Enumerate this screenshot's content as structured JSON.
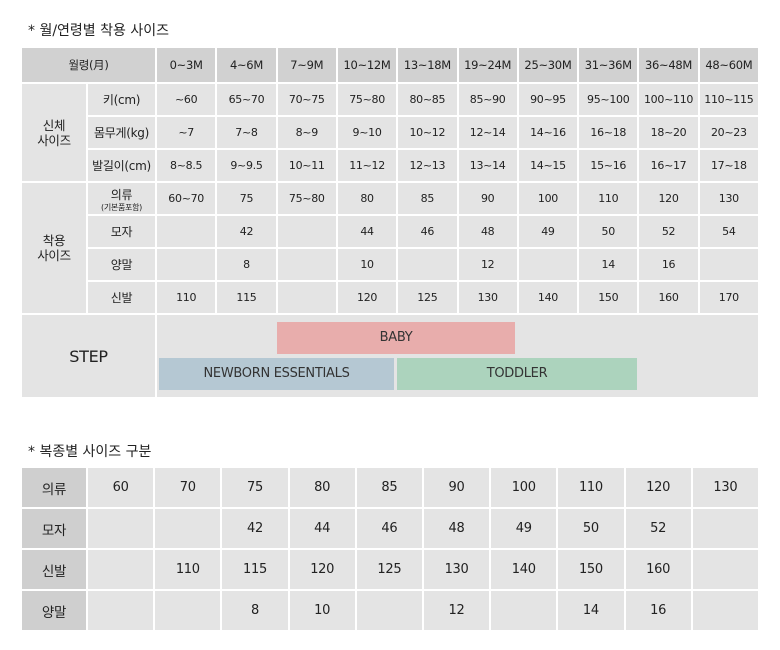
{
  "section1": {
    "title": "* 월/연령별 착용 사이즈",
    "header_label": "월령(月)",
    "months": [
      "0~3M",
      "4~6M",
      "7~9M",
      "10~12M",
      "13~18M",
      "19~24M",
      "25~30M",
      "31~36M",
      "36~48M",
      "48~60M"
    ],
    "body_group": "신체\n사이즈",
    "body_rows": [
      {
        "label": "키(cm)",
        "values": [
          "~60",
          "65~70",
          "70~75",
          "75~80",
          "80~85",
          "85~90",
          "90~95",
          "95~100",
          "100~110",
          "110~115"
        ]
      },
      {
        "label": "몸무게(kg)",
        "values": [
          "~7",
          "7~8",
          "8~9",
          "9~10",
          "10~12",
          "12~14",
          "14~16",
          "16~18",
          "18~20",
          "20~23"
        ]
      },
      {
        "label": "발길이(cm)",
        "values": [
          "8~8.5",
          "9~9.5",
          "10~11",
          "11~12",
          "12~13",
          "13~14",
          "14~15",
          "15~16",
          "16~17",
          "17~18"
        ]
      }
    ],
    "wear_group": "착용\n사이즈",
    "wear_rows": [
      {
        "label": "의류",
        "sublabel": "(기본품포함)",
        "values": [
          "60~70",
          "75",
          "75~80",
          "80",
          "85",
          "90",
          "100",
          "110",
          "120",
          "130"
        ]
      },
      {
        "label": "모자",
        "values": [
          "",
          "42",
          "",
          "44",
          "46",
          "48",
          "49",
          "50",
          "52",
          "54"
        ]
      },
      {
        "label": "양말",
        "values": [
          "",
          "8",
          "",
          "10",
          "",
          "12",
          "",
          "14",
          "16",
          ""
        ]
      },
      {
        "label": "신발",
        "values": [
          "110",
          "115",
          "",
          "120",
          "125",
          "130",
          "140",
          "150",
          "160",
          "170"
        ]
      }
    ],
    "step": {
      "label": "STEP",
      "bars": [
        {
          "label": "BABY",
          "color": "#e8adac"
        },
        {
          "label": "NEWBORN ESSENTIALS",
          "color": "#b5c8d3"
        },
        {
          "label": "TODDLER",
          "color": "#acd3bd"
        }
      ]
    }
  },
  "section2": {
    "title": "* 복종별 사이즈 구분",
    "rows": [
      {
        "label": "의류",
        "values": [
          "60",
          "70",
          "75",
          "80",
          "85",
          "90",
          "100",
          "110",
          "120",
          "130"
        ]
      },
      {
        "label": "모자",
        "values": [
          "",
          "",
          "42",
          "44",
          "46",
          "48",
          "49",
          "50",
          "52",
          ""
        ]
      },
      {
        "label": "신발",
        "values": [
          "",
          "110",
          "115",
          "120",
          "125",
          "130",
          "140",
          "150",
          "160",
          ""
        ]
      },
      {
        "label": "양말",
        "values": [
          "",
          "",
          "8",
          "10",
          "",
          "12",
          "",
          "14",
          "16",
          ""
        ]
      }
    ]
  }
}
